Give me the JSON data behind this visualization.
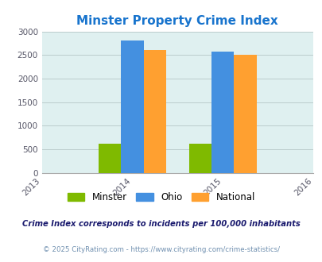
{
  "title": "Minster Property Crime Index",
  "title_color": "#1874CD",
  "years": [
    2014,
    2015
  ],
  "minster_values": [
    620,
    620
  ],
  "ohio_values": [
    2800,
    2580
  ],
  "national_values": [
    2600,
    2500
  ],
  "minster_color": "#7FBA00",
  "ohio_color": "#4490E0",
  "national_color": "#FFA030",
  "bg_color": "#DFF0F0",
  "ylim": [
    0,
    3000
  ],
  "yticks": [
    0,
    500,
    1000,
    1500,
    2000,
    2500,
    3000
  ],
  "xlim": [
    2013,
    2016
  ],
  "xticks": [
    2013,
    2014,
    2015,
    2016
  ],
  "bar_width": 0.25,
  "legend_labels": [
    "Minster",
    "Ohio",
    "National"
  ],
  "footnote1": "Crime Index corresponds to incidents per 100,000 inhabitants",
  "footnote2": "© 2025 CityRating.com - https://www.cityrating.com/crime-statistics/",
  "footnote1_color": "#1a1a6e",
  "footnote2_color": "#7090B0",
  "grid_color": "#BBCCCC"
}
